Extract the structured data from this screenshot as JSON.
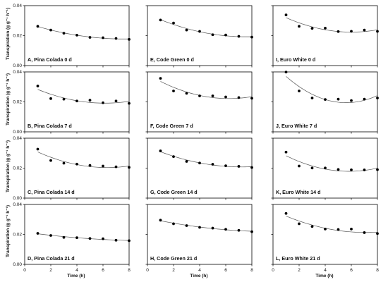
{
  "chart_data": {
    "type": "scatter",
    "layout": "4 rows x 3 columns of panels",
    "ylabel": "Transpiration (g g⁻¹ h⁻¹)",
    "xlabel": "Time (h)",
    "xlim": [
      0,
      8
    ],
    "ylim": [
      0,
      0.04
    ],
    "xticks": [
      "0",
      "2",
      "4",
      "6",
      "8"
    ],
    "yticks": [
      "0.00",
      "0.02",
      "0.04"
    ],
    "x": [
      1,
      2,
      3,
      4,
      5,
      6,
      7,
      8
    ],
    "series_style": "black circular markers with grey fitted curve",
    "panels": [
      {
        "label": "A, Pina Colada 0 d",
        "values": [
          0.0262,
          0.0237,
          0.0216,
          0.0203,
          0.0188,
          0.0186,
          0.0181,
          0.0175
        ]
      },
      {
        "label": "E, Code Green 0 d",
        "values": [
          0.0304,
          0.0284,
          0.0237,
          0.0228,
          0.0206,
          0.0204,
          0.0195,
          0.019
        ]
      },
      {
        "label": "I, Euro White 0 d",
        "values": [
          0.0338,
          0.0262,
          0.0248,
          0.025,
          0.0227,
          0.0229,
          0.0237,
          0.0228
        ]
      },
      {
        "label": "B, Pina Colada 7 d",
        "values": [
          0.0306,
          0.0222,
          0.0218,
          0.0206,
          0.0211,
          0.0194,
          0.0206,
          0.019
        ]
      },
      {
        "label": "F, Code Green 7 d",
        "values": [
          0.0357,
          0.0273,
          0.0257,
          0.024,
          0.024,
          0.0233,
          0.0229,
          0.0224
        ]
      },
      {
        "label": "J, Euro White 7 d",
        "values": [
          0.0399,
          0.0273,
          0.0226,
          0.0216,
          0.0218,
          0.0209,
          0.0218,
          0.0226
        ]
      },
      {
        "label": "C, Pina Colada 14 d",
        "values": [
          0.0327,
          0.0251,
          0.0233,
          0.0227,
          0.0218,
          0.0214,
          0.0209,
          0.0205
        ]
      },
      {
        "label": "G, Code Green 14 d",
        "values": [
          0.0315,
          0.0277,
          0.0245,
          0.0234,
          0.0226,
          0.0216,
          0.0212,
          0.0204
        ]
      },
      {
        "label": "K, Euro White 14 d",
        "values": [
          0.0307,
          0.0214,
          0.0201,
          0.0201,
          0.0191,
          0.0189,
          0.0188,
          0.019
        ]
      },
      {
        "label": "D, Pina Colada 21 d",
        "values": [
          0.0207,
          0.0193,
          0.018,
          0.0178,
          0.0173,
          0.0171,
          0.0161,
          0.0158
        ]
      },
      {
        "label": "H, Code Green 21 d",
        "values": [
          0.0295,
          0.0271,
          0.0259,
          0.0247,
          0.0242,
          0.0234,
          0.0227,
          0.0218
        ]
      },
      {
        "label": "L, Euro White 21 d",
        "values": [
          0.034,
          0.0271,
          0.0253,
          0.0236,
          0.0233,
          0.0236,
          0.0212,
          0.0206
        ]
      }
    ]
  }
}
